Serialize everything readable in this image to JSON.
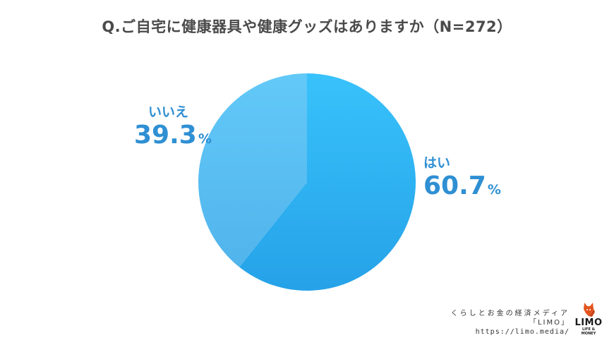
{
  "chart_data": {
    "type": "pie",
    "title": "Q.ご自宅に健康器具や健康グッズはありますか（N=272）",
    "unit": "%",
    "slices": [
      {
        "label": "はい",
        "value": 60.7,
        "color": "#33b2f0"
      },
      {
        "label": "いいえ",
        "value": 39.3,
        "color": "#5cc1f5"
      }
    ]
  },
  "footer": {
    "tagline": "くらしとお金の経済メディア",
    "brand": "「LIMO」",
    "url": "https://limo.media/"
  },
  "logo": {
    "text": "LIMO",
    "subtext": "LIFE & MONEY",
    "icon": "fox-icon",
    "color": "#e4541e"
  }
}
